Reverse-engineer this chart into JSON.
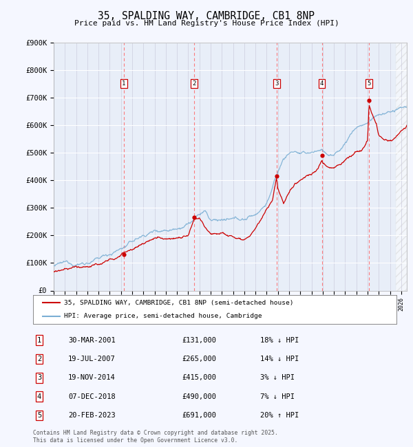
{
  "title": "35, SPALDING WAY, CAMBRIDGE, CB1 8NP",
  "subtitle": "Price paid vs. HM Land Registry's House Price Index (HPI)",
  "ylim": [
    0,
    900000
  ],
  "yticks": [
    0,
    100000,
    200000,
    300000,
    400000,
    500000,
    600000,
    700000,
    800000,
    900000
  ],
  "ytick_labels": [
    "£0",
    "£100K",
    "£200K",
    "£300K",
    "£400K",
    "£500K",
    "£600K",
    "£700K",
    "£800K",
    "£900K"
  ],
  "xlim_start": 1995.0,
  "xlim_end": 2026.5,
  "background_color": "#f5f7ff",
  "plot_bg_color": "#e8eef8",
  "red_line_color": "#cc0000",
  "blue_line_color": "#7bafd4",
  "transaction_color": "#cc0000",
  "vline_color": "#ff6666",
  "transactions": [
    {
      "num": 1,
      "year": 2001.25,
      "price": 131000
    },
    {
      "num": 2,
      "year": 2007.54,
      "price": 265000
    },
    {
      "num": 3,
      "year": 2014.89,
      "price": 415000
    },
    {
      "num": 4,
      "year": 2018.92,
      "price": 490000
    },
    {
      "num": 5,
      "year": 2023.13,
      "price": 691000
    }
  ],
  "legend_line1": "35, SPALDING WAY, CAMBRIDGE, CB1 8NP (semi-detached house)",
  "legend_line2": "HPI: Average price, semi-detached house, Cambridge",
  "footer": "Contains HM Land Registry data © Crown copyright and database right 2025.\nThis data is licensed under the Open Government Licence v3.0.",
  "table_rows": [
    [
      "1",
      "30-MAR-2001",
      "£131,000",
      "18% ↓ HPI"
    ],
    [
      "2",
      "19-JUL-2007",
      "£265,000",
      "14% ↓ HPI"
    ],
    [
      "3",
      "19-NOV-2014",
      "£415,000",
      "3% ↓ HPI"
    ],
    [
      "4",
      "07-DEC-2018",
      "£490,000",
      "7% ↓ HPI"
    ],
    [
      "5",
      "20-FEB-2023",
      "£691,000",
      "20% ↑ HPI"
    ]
  ]
}
